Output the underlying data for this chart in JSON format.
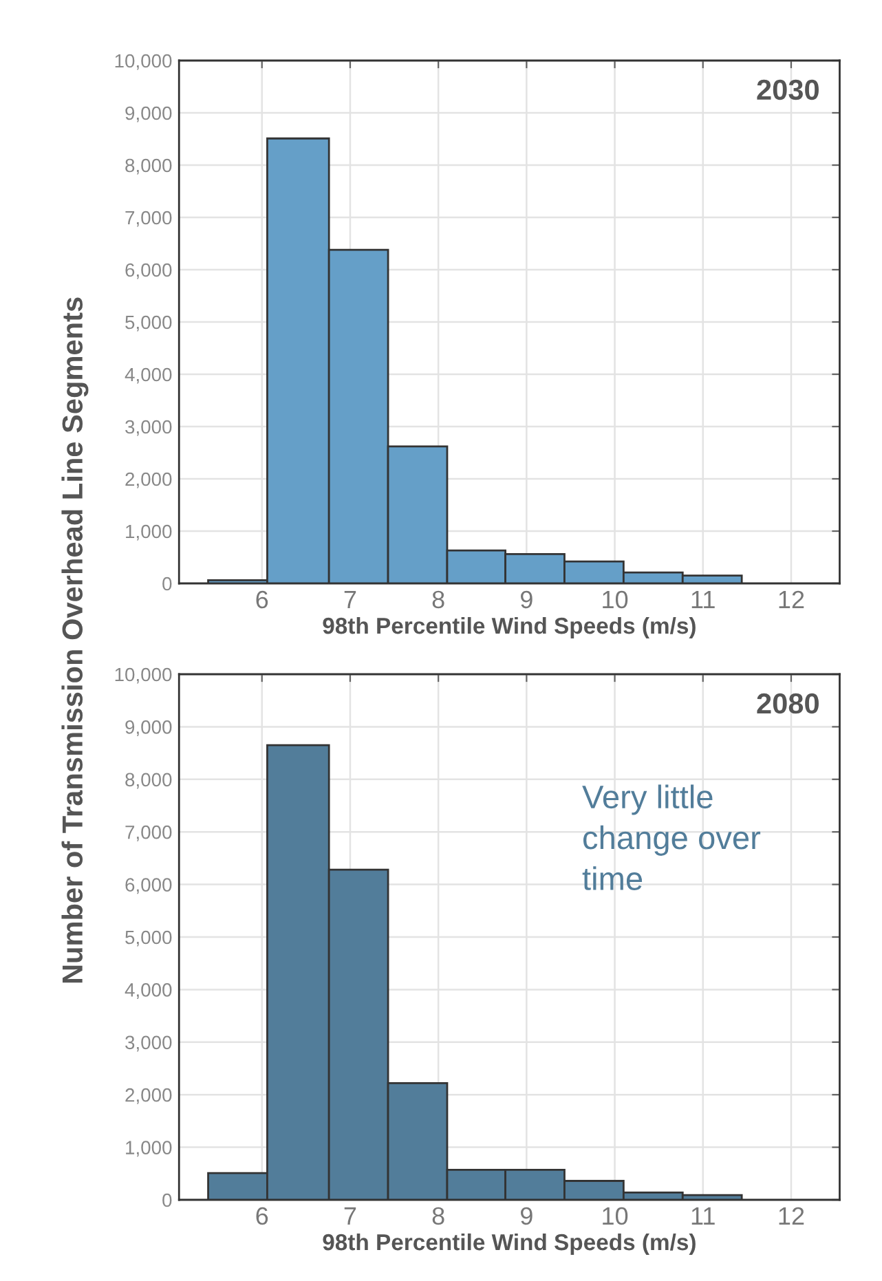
{
  "chart_data": [
    {
      "type": "histogram",
      "title": "2030",
      "xlabel": "98th Percentile Wind Speeds (m/s)",
      "ylabel": "Number of Transmission Overhead Line Segments",
      "bins": [
        5.39,
        6.06,
        6.76,
        7.43,
        8.1,
        8.76,
        9.43,
        10.1,
        10.77,
        11.44
      ],
      "values": [
        60,
        8510,
        6380,
        2620,
        630,
        560,
        420,
        210,
        150
      ],
      "color": "#659fc8",
      "xlim": [
        5.06,
        12.55
      ],
      "xticks": [
        6,
        7,
        8,
        9,
        10,
        11,
        12
      ],
      "ylim": [
        0,
        10000
      ],
      "yticks": [
        {
          "value": 0,
          "label": "0"
        },
        {
          "value": 1000,
          "label": "1,000"
        },
        {
          "value": 2000,
          "label": "2,000"
        },
        {
          "value": 3000,
          "label": "3,000"
        },
        {
          "value": 4000,
          "label": "4,000"
        },
        {
          "value": 5000,
          "label": "5,000"
        },
        {
          "value": 6000,
          "label": "6,000"
        },
        {
          "value": 7000,
          "label": "7,000"
        },
        {
          "value": 8000,
          "label": "8,000"
        },
        {
          "value": 9000,
          "label": "9,000"
        },
        {
          "value": 10000,
          "label": "10,000"
        }
      ],
      "grid": true
    },
    {
      "type": "histogram",
      "title": "2080",
      "xlabel": "98th Percentile Wind Speeds (m/s)",
      "annotations": [
        "Very little change over time"
      ],
      "bins": [
        5.39,
        6.06,
        6.76,
        7.43,
        8.1,
        8.76,
        9.43,
        10.1,
        10.77,
        11.44
      ],
      "values": [
        510,
        8650,
        6280,
        2220,
        570,
        570,
        360,
        140,
        90
      ],
      "color": "#527d9a",
      "xlim": [
        5.06,
        12.55
      ],
      "xticks": [
        6,
        7,
        8,
        9,
        10,
        11,
        12
      ],
      "ylim": [
        0,
        10000
      ],
      "yticks": [
        {
          "value": 0,
          "label": "0"
        },
        {
          "value": 1000,
          "label": "1,000"
        },
        {
          "value": 2000,
          "label": "2,000"
        },
        {
          "value": 3000,
          "label": "3,000"
        },
        {
          "value": 4000,
          "label": "4,000"
        },
        {
          "value": 5000,
          "label": "5,000"
        },
        {
          "value": 6000,
          "label": "6,000"
        },
        {
          "value": 7000,
          "label": "7,000"
        },
        {
          "value": 8000,
          "label": "8,000"
        },
        {
          "value": 9000,
          "label": "9,000"
        },
        {
          "value": 10000,
          "label": "10,000"
        }
      ],
      "grid": true
    }
  ]
}
